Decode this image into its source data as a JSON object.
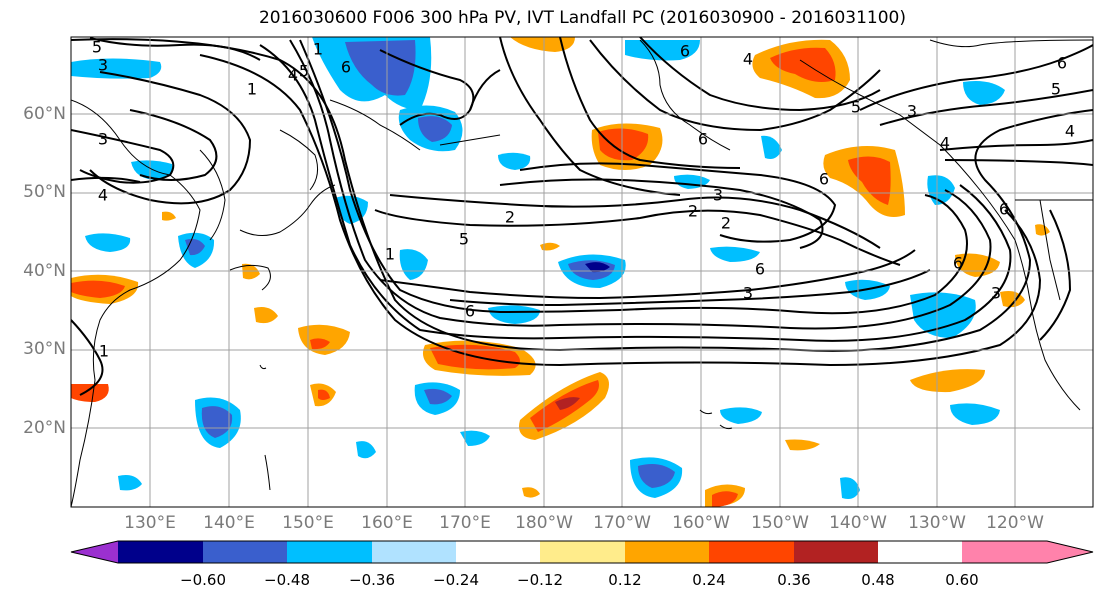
{
  "title": "2016030600 F006 300 hPa PV, IVT Landfall PC (2016030900 - 2016031100)",
  "map": {
    "lat_labels": [
      "60°N",
      "50°N",
      "40°N",
      "30°N",
      "20°N"
    ],
    "lon_labels": [
      "130°E",
      "140°E",
      "150°E",
      "160°E",
      "170°E",
      "180°W",
      "170°W",
      "160°W",
      "150°W",
      "140°W",
      "130°W",
      "120°W"
    ]
  },
  "colorbar": {
    "ticks": [
      "−0.60",
      "−0.48",
      "−0.36",
      "−0.24",
      "−0.12",
      "0.12",
      "0.24",
      "0.36",
      "0.48",
      "0.60"
    ],
    "colors": [
      "#9b30d0",
      "#00008b",
      "#3a5fcd",
      "#00bfff",
      "#b0e2ff",
      "#ffffff",
      "#ffec8b",
      "#ffa500",
      "#ff4500",
      "#b22222",
      "#ff82ab"
    ]
  },
  "contour_labels": [
    "5",
    "3",
    "3",
    "4",
    "1",
    "4",
    "5",
    "6",
    "1",
    "2",
    "5",
    "6",
    "1",
    "6",
    "6",
    "3",
    "4",
    "4",
    "5",
    "4",
    "3",
    "2",
    "2",
    "3",
    "6",
    "6",
    "3",
    "6",
    "6",
    "5",
    "6",
    "1"
  ]
}
